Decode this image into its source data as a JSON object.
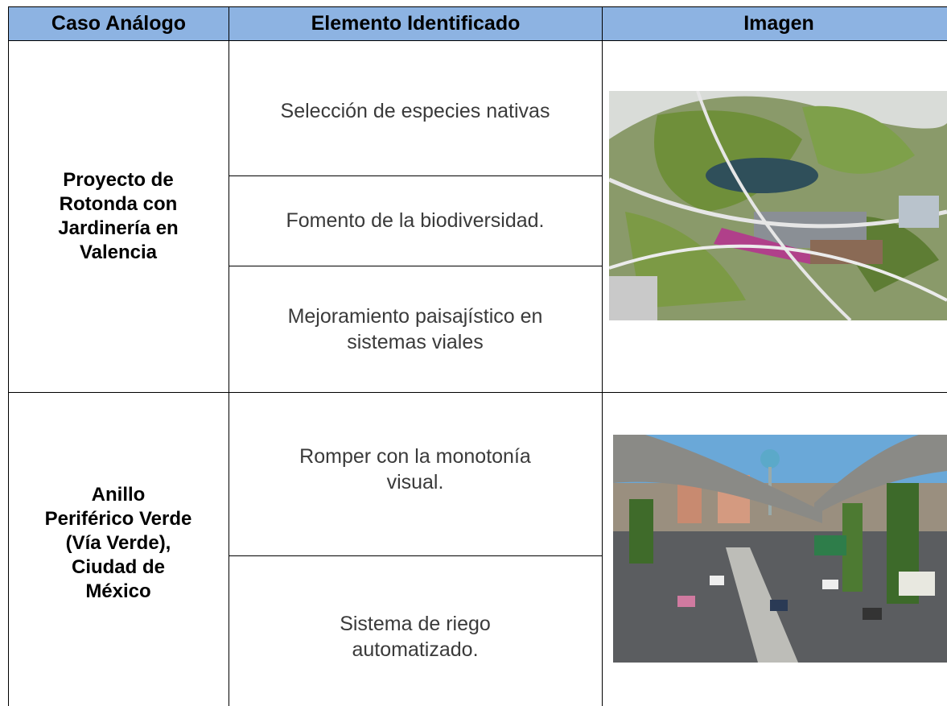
{
  "table": {
    "headers": [
      "Caso Análogo",
      "Elemento Identificado",
      "Imagen"
    ],
    "rows": [
      {
        "case": [
          "Proyecto de",
          "Rotonda con",
          "Jardinería en",
          "Valencia"
        ],
        "elements": [
          [
            "Selección de especies nativas"
          ],
          [
            "Fomento de la biodiversidad."
          ],
          [
            "Mejoramiento paisajístico en",
            "sistemas viales"
          ]
        ]
      },
      {
        "case": [
          "Anillo",
          "Periférico Verde",
          "(Vía Verde),",
          "Ciudad de",
          "México"
        ],
        "elements": [
          [
            "Romper con la monotonía",
            "visual."
          ],
          [
            "Sistema de riego",
            "automatizado."
          ]
        ]
      }
    ]
  }
}
